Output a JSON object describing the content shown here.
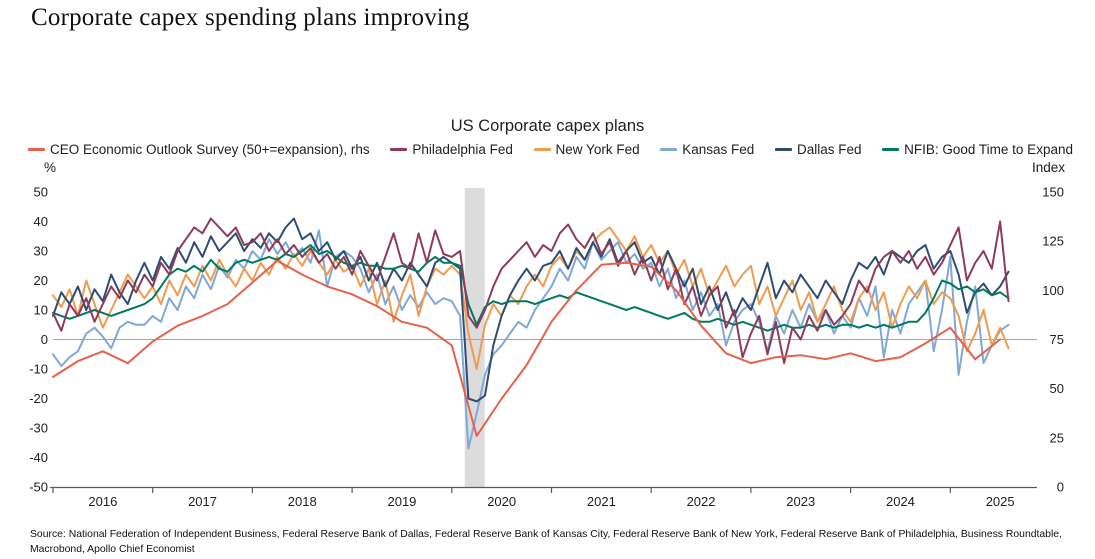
{
  "page": {
    "title": "Corporate capex spending plans improving"
  },
  "chart": {
    "title": "US Corporate capex plans",
    "left_axis": {
      "unit": "%",
      "ticks": [
        50,
        40,
        30,
        20,
        10,
        0,
        -10,
        -20,
        -30,
        -40,
        -50
      ],
      "min": -50,
      "max": 50
    },
    "right_axis": {
      "unit": "Index",
      "ticks": [
        150,
        125,
        100,
        75,
        50,
        25,
        0
      ],
      "min": 0,
      "max": 150
    },
    "x_axis": {
      "years": [
        2016,
        2017,
        2018,
        2019,
        2020,
        2021,
        2022,
        2023,
        2024,
        2025
      ]
    }
  },
  "legend": [
    {
      "label": "CEO Economic Outlook Survey (50+=expansion), rhs",
      "color": "#e8604c"
    },
    {
      "label": "Philadelphia Fed",
      "color": "#8e3b5a"
    },
    {
      "label": "New York Fed",
      "color": "#f09b4d"
    },
    {
      "label": "Kansas Fed",
      "color": "#7fa8d9"
    },
    {
      "label": "Dallas Fed",
      "color": "#2f4d73"
    },
    {
      "label": "NFIB: Good Time to Expand",
      "color": "#007a5e"
    }
  ],
  "chart_data": {
    "type": "line",
    "title": "US Corporate capex plans",
    "xlabel": "",
    "ylabel_left": "%",
    "ylabel_right": "Index",
    "xlim": [
      2016,
      2025.85
    ],
    "ylim_left": [
      -50,
      50
    ],
    "ylim_right": [
      0,
      150
    ],
    "grid": "zero-line-only",
    "legend_position": "top",
    "recession_band": {
      "from": 2020.13,
      "to": 2020.33,
      "color": "#dcdcdc"
    },
    "series": [
      {
        "name": "Kansas Fed",
        "color": "#7fa8d9",
        "axis": "left",
        "x_start": 2016.0,
        "x_step": 0.083333,
        "values": [
          -5,
          -9,
          -6,
          -4,
          2,
          4,
          1,
          -3,
          4,
          6,
          5,
          5,
          8,
          6,
          14,
          10,
          18,
          14,
          22,
          17,
          25,
          21,
          27,
          24,
          30,
          27,
          34,
          29,
          33,
          28,
          31,
          26,
          37,
          18,
          28,
          30,
          28,
          24,
          16,
          22,
          12,
          18,
          10,
          15,
          11,
          16,
          12,
          14,
          13,
          8,
          -37,
          -25,
          -12,
          -5,
          -2,
          2,
          6,
          4,
          10,
          14,
          18,
          24,
          20,
          28,
          24,
          33,
          27,
          30,
          33,
          26,
          29,
          24,
          26,
          18,
          24,
          14,
          20,
          10,
          16,
          8,
          12,
          -2,
          6,
          10,
          12,
          6,
          -4,
          8,
          2,
          10,
          4,
          12,
          6,
          10,
          2,
          8,
          4,
          14,
          8,
          18,
          -6,
          10,
          2,
          12,
          16,
          20,
          -4,
          10,
          28,
          -12,
          6,
          18,
          -8,
          -2,
          3,
          5
        ]
      },
      {
        "name": "New York Fed",
        "color": "#f09b4d",
        "axis": "left",
        "x_start": 2016.0,
        "x_step": 0.083333,
        "values": [
          15,
          11,
          17,
          8,
          20,
          12,
          4,
          10,
          16,
          22,
          18,
          14,
          18,
          12,
          20,
          15,
          22,
          18,
          25,
          20,
          27,
          22,
          18,
          24,
          20,
          26,
          22,
          28,
          24,
          29,
          25,
          30,
          26,
          22,
          27,
          23,
          25,
          18,
          24,
          12,
          20,
          6,
          15,
          22,
          8,
          18,
          24,
          22,
          25,
          22,
          2,
          -10,
          5,
          12,
          8,
          15,
          12,
          18,
          22,
          18,
          25,
          28,
          24,
          30,
          27,
          33,
          36,
          38,
          34,
          30,
          35,
          28,
          32,
          26,
          30,
          22,
          27,
          18,
          24,
          15,
          20,
          25,
          18,
          22,
          25,
          12,
          18,
          8,
          14,
          20,
          10,
          16,
          6,
          12,
          18,
          10,
          6,
          14,
          18,
          10,
          16,
          4,
          12,
          18,
          14,
          20,
          12,
          16,
          14,
          8,
          -4,
          2,
          10,
          -2,
          4,
          -3
        ]
      },
      {
        "name": "Dallas Fed",
        "color": "#2f4d73",
        "axis": "left",
        "x_start": 2016.0,
        "x_step": 0.083333,
        "values": [
          8,
          16,
          12,
          18,
          10,
          17,
          13,
          22,
          16,
          12,
          20,
          26,
          20,
          28,
          24,
          31,
          26,
          33,
          28,
          35,
          30,
          33,
          36,
          30,
          34,
          31,
          36,
          33,
          38,
          41,
          34,
          36,
          30,
          33,
          27,
          30,
          24,
          28,
          20,
          26,
          18,
          24,
          20,
          26,
          22,
          18,
          26,
          28,
          26,
          24,
          -20,
          -21,
          -19,
          -2,
          8,
          15,
          20,
          24,
          20,
          25,
          26,
          30,
          24,
          31,
          27,
          33,
          28,
          34,
          26,
          30,
          33,
          26,
          28,
          22,
          30,
          24,
          18,
          24,
          12,
          18,
          10,
          16,
          8,
          14,
          10,
          18,
          26,
          14,
          20,
          16,
          22,
          18,
          14,
          20,
          16,
          12,
          20,
          26,
          24,
          28,
          22,
          30,
          28,
          26,
          30,
          32,
          24,
          28,
          30,
          22,
          9,
          16,
          19,
          15,
          18,
          23
        ]
      },
      {
        "name": "NFIB: Good Time to Expand",
        "color": "#007a5e",
        "axis": "left",
        "x_start": 2016.0,
        "x_step": 0.083333,
        "values": [
          9,
          8,
          7,
          8,
          9,
          10,
          9,
          8,
          9,
          10,
          11,
          12,
          14,
          18,
          22,
          24,
          23,
          25,
          23,
          27,
          24,
          23,
          26,
          27,
          26,
          27,
          28,
          27,
          29,
          28,
          30,
          32,
          29,
          30,
          28,
          26,
          25,
          26,
          25,
          25,
          24,
          24,
          25,
          24,
          23,
          26,
          28,
          26,
          26,
          25,
          12,
          5,
          11,
          13,
          12,
          13,
          13,
          13,
          12,
          13,
          14,
          15,
          14,
          16,
          15,
          14,
          13,
          12,
          11,
          10,
          11,
          10,
          9,
          8,
          7,
          8,
          9,
          7,
          6,
          6,
          7,
          6,
          5,
          6,
          5,
          4,
          3,
          4,
          5,
          4,
          4,
          5,
          4,
          5,
          4,
          5,
          5,
          4,
          5,
          4,
          5,
          4,
          5,
          6,
          6,
          9,
          14,
          20,
          19,
          17,
          18,
          16,
          17,
          15,
          16,
          14
        ]
      },
      {
        "name": "Philadelphia Fed",
        "color": "#8e3b5a",
        "axis": "left",
        "x_start": 2016.0,
        "x_step": 0.083333,
        "values": [
          9,
          3,
          12,
          8,
          14,
          6,
          12,
          18,
          14,
          20,
          16,
          22,
          18,
          26,
          22,
          30,
          34,
          38,
          36,
          41,
          38,
          35,
          38,
          32,
          33,
          36,
          30,
          34,
          29,
          32,
          28,
          31,
          26,
          29,
          24,
          28,
          22,
          30,
          25,
          20,
          28,
          36,
          26,
          24,
          36,
          26,
          37,
          29,
          28,
          30,
          8,
          4,
          10,
          18,
          24,
          27,
          30,
          33,
          28,
          32,
          30,
          36,
          39,
          34,
          31,
          36,
          29,
          33,
          25,
          30,
          22,
          28,
          20,
          28,
          17,
          24,
          12,
          18,
          8,
          15,
          18,
          4,
          10,
          -6,
          2,
          8,
          -5,
          6,
          -8,
          4,
          0,
          8,
          3,
          10,
          5,
          8,
          12,
          20,
          16,
          24,
          28,
          30,
          26,
          30,
          24,
          28,
          22,
          26,
          32,
          38,
          20,
          26,
          30,
          24,
          40,
          13
        ]
      },
      {
        "name": "CEO Economic Outlook Survey (50+=expansion), rhs",
        "color": "#e8604c",
        "axis": "right",
        "x_start": 2016.0,
        "x_step": 0.25,
        "values": [
          56,
          64,
          69,
          63,
          74,
          82,
          87,
          93,
          104,
          115,
          108,
          102,
          98,
          92,
          84,
          81,
          72,
          26,
          45,
          62,
          84,
          100,
          113,
          114,
          112,
          100,
          82,
          68,
          63,
          66,
          67,
          65,
          68,
          64,
          66,
          73,
          81,
          65,
          75
        ]
      }
    ]
  },
  "source": {
    "line1": "Source: National Federation of Independent Business, Federal Reserve Bank of Dallas, Federal Reserve Bank of Kansas City, Federal Reserve Bank of New York, Federal Reserve Bank of Philadelphia, Business Roundtable,",
    "line2": "Macrobond, Apollo Chief Economist"
  }
}
